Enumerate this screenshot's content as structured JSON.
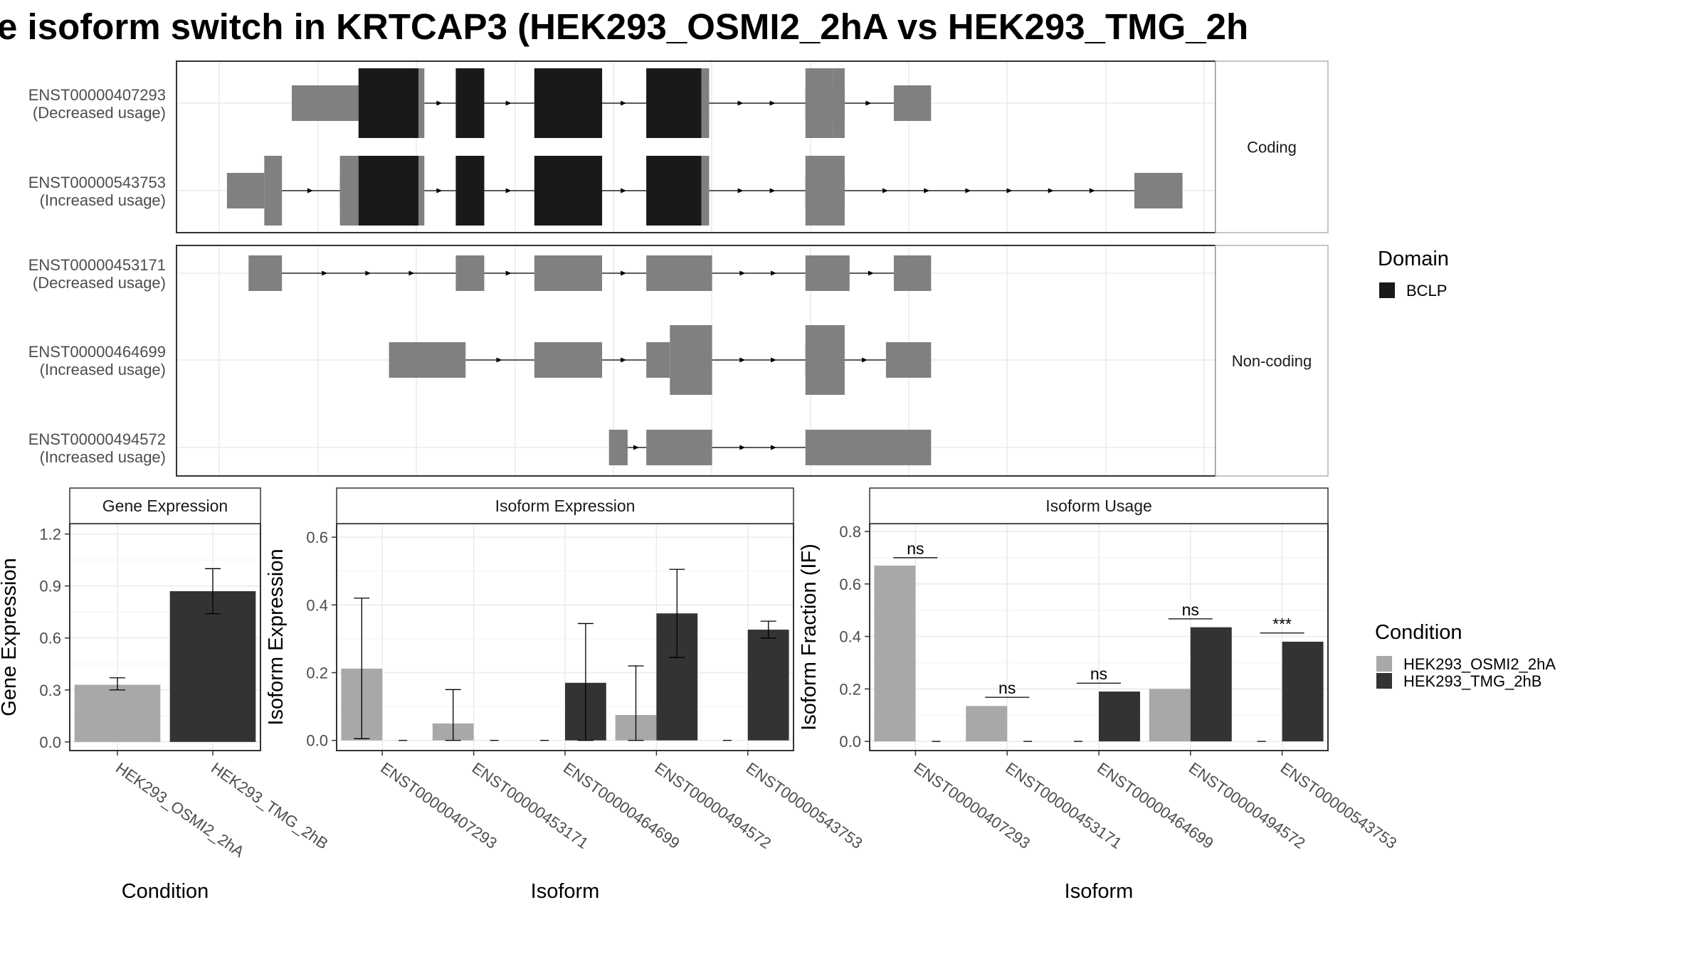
{
  "title": "e isoform switch in KRTCAP3 (HEK293_OSMI2_2hA vs HEK293_TMG_2h",
  "colors": {
    "domain": "#191919",
    "utr": "#808080",
    "cond1": "#a8a8a8",
    "cond2": "#333333",
    "grid": "#ebebeb"
  },
  "structure": {
    "xlim": [
      0,
      100
    ],
    "groups": [
      {
        "label": "Coding",
        "isoforms": [
          {
            "id": "ENST00000407293",
            "usage": "(Decreased usage)",
            "utr": [
              [
                7.1,
                14.4
              ],
              [
                23.8,
                26.7
              ],
              [
                31.8,
                38.7
              ],
              [
                43.2,
                49.6
              ],
              [
                59.4,
                63.4
              ],
              [
                68.4,
                72.2
              ]
            ],
            "cds": [
              [
                13.9,
                20.6
              ],
              [
                23.8,
                26.7
              ],
              [
                31.8,
                38.7
              ],
              [
                43.2,
                49.6
              ],
              [
                59.4,
                62.2
              ],
              [
                62.2,
                63.4
              ]
            ],
            "domain": [
              [
                13.9,
                20.0
              ],
              [
                23.8,
                26.7
              ],
              [
                31.8,
                38.7
              ],
              [
                43.2,
                48.8
              ]
            ],
            "introns": [
              [
                20.6,
                23.8
              ],
              [
                26.7,
                31.8
              ],
              [
                38.7,
                43.2
              ],
              [
                49.6,
                59.4
              ],
              [
                63.4,
                68.4
              ]
            ]
          },
          {
            "id": "ENST00000543753",
            "usage": "(Increased usage)",
            "utr": [
              [
                0.5,
                4.3
              ],
              [
                12.0,
                14.0
              ],
              [
                59.4,
                63.4
              ],
              [
                92.9,
                97.8
              ]
            ],
            "cds": [
              [
                4.3,
                6.1
              ],
              [
                12.0,
                20.6
              ],
              [
                23.8,
                26.7
              ],
              [
                31.8,
                38.7
              ],
              [
                43.2,
                49.6
              ],
              [
                59.4,
                63.4
              ]
            ],
            "domain": [
              [
                13.9,
                20.0
              ],
              [
                23.8,
                26.7
              ],
              [
                31.8,
                38.7
              ],
              [
                43.2,
                48.8
              ]
            ],
            "introns": [
              [
                6.1,
                12.0
              ],
              [
                20.6,
                23.8
              ],
              [
                26.7,
                31.8
              ],
              [
                38.7,
                43.2
              ],
              [
                49.6,
                59.4
              ],
              [
                63.4,
                92.9
              ]
            ]
          }
        ]
      },
      {
        "label": "Non-coding",
        "isoforms": [
          {
            "id": "ENST00000453171",
            "usage": "(Decreased usage)",
            "utr": [
              [
                2.7,
                6.1
              ],
              [
                23.8,
                26.7
              ],
              [
                31.8,
                38.7
              ],
              [
                43.2,
                49.9
              ],
              [
                59.4,
                63.9
              ],
              [
                68.4,
                72.2
              ]
            ],
            "cds": [],
            "domain": [],
            "introns": [
              [
                6.1,
                23.8
              ],
              [
                26.7,
                31.8
              ],
              [
                38.7,
                43.2
              ],
              [
                49.9,
                59.4
              ],
              [
                63.9,
                68.4
              ]
            ]
          },
          {
            "id": "ENST00000464699",
            "usage": "(Increased usage)",
            "utr": [
              [
                17.0,
                24.8
              ],
              [
                31.8,
                38.7
              ],
              [
                43.2,
                45.6
              ],
              [
                59.4,
                62.4
              ],
              [
                67.6,
                72.2
              ]
            ],
            "cds": [
              [
                45.6,
                49.9
              ],
              [
                59.4,
                63.4
              ]
            ],
            "domain": [],
            "introns": [
              [
                24.8,
                31.8
              ],
              [
                38.7,
                43.2
              ],
              [
                49.9,
                59.4
              ],
              [
                63.4,
                67.6
              ]
            ]
          },
          {
            "id": "ENST00000494572",
            "usage": "(Increased usage)",
            "utr": [
              [
                39.4,
                41.3
              ],
              [
                43.2,
                49.9
              ],
              [
                59.4,
                72.2
              ]
            ],
            "cds": [],
            "domain": [],
            "introns": [
              [
                41.3,
                43.2
              ],
              [
                49.9,
                59.4
              ]
            ]
          }
        ]
      }
    ]
  },
  "legend_domain": {
    "title": "Domain",
    "items": [
      {
        "label": "BCLP",
        "color": "#191919"
      }
    ]
  },
  "legend_condition": {
    "title": "Condition",
    "items": [
      {
        "label": "HEK293_OSMI2_2hA",
        "color": "#a8a8a8"
      },
      {
        "label": "HEK293_TMG_2hB",
        "color": "#333333"
      }
    ]
  },
  "chart_data": [
    {
      "type": "bar",
      "title": "Gene Expression",
      "xlabel": "Condition",
      "ylabel": "Gene Expression",
      "categories": [
        "HEK293_OSMI2_2hA",
        "HEK293_TMG_2hB"
      ],
      "values": [
        0.33,
        0.87
      ],
      "errors": [
        [
          0.3,
          0.37
        ],
        [
          0.74,
          1.0
        ]
      ],
      "ylim": [
        -0.05,
        1.26
      ],
      "yticks": [
        0.0,
        0.3,
        0.6,
        0.9,
        1.2
      ],
      "ytick_labels": [
        "0.0",
        "0.3",
        "0.6",
        "0.9",
        "1.2"
      ]
    },
    {
      "type": "bar",
      "title": "Isoform Expression",
      "xlabel": "Isoform",
      "ylabel": "Isoform Expression",
      "categories": [
        "ENST00000407293",
        "ENST00000453171",
        "ENST00000464699",
        "ENST00000494572",
        "ENST00000543753"
      ],
      "series": [
        {
          "name": "HEK293_OSMI2_2hA",
          "values": [
            0.212,
            0.05,
            0.0,
            0.075,
            0.0
          ],
          "errors": [
            [
              0.005,
              0.42
            ],
            [
              0.0,
              0.15
            ],
            null,
            [
              0.0,
              0.22
            ],
            null
          ]
        },
        {
          "name": "HEK293_TMG_2hB",
          "values": [
            0.0,
            0.0,
            0.17,
            0.375,
            0.327
          ],
          "errors": [
            null,
            null,
            [
              0.0,
              0.345
            ],
            [
              0.245,
              0.505
            ],
            [
              0.302,
              0.352
            ]
          ]
        }
      ],
      "ylim": [
        -0.03,
        0.64
      ],
      "yticks": [
        0.0,
        0.2,
        0.4,
        0.6
      ],
      "ytick_labels": [
        "0.0",
        "0.2",
        "0.4",
        "0.6"
      ]
    },
    {
      "type": "bar",
      "title": "Isoform Usage",
      "xlabel": "Isoform",
      "ylabel": "Isoform Fraction (IF)",
      "categories": [
        "ENST00000407293",
        "ENST00000453171",
        "ENST00000464699",
        "ENST00000494572",
        "ENST00000543753"
      ],
      "series": [
        {
          "name": "HEK293_OSMI2_2hA",
          "values": [
            0.67,
            0.135,
            0.0,
            0.2,
            0.0
          ]
        },
        {
          "name": "HEK293_TMG_2hB",
          "values": [
            0.0,
            0.0,
            0.19,
            0.435,
            0.38
          ]
        }
      ],
      "annotations": [
        {
          "category": 0,
          "label": "ns",
          "y": 0.7
        },
        {
          "category": 1,
          "label": "ns",
          "y": 0.168
        },
        {
          "category": 2,
          "label": "ns",
          "y": 0.222
        },
        {
          "category": 3,
          "label": "ns",
          "y": 0.467
        },
        {
          "category": 4,
          "label": "***",
          "y": 0.413
        }
      ],
      "ylim": [
        -0.035,
        0.83
      ],
      "yticks": [
        0.0,
        0.2,
        0.4,
        0.6,
        0.8
      ],
      "ytick_labels": [
        "0.0",
        "0.2",
        "0.4",
        "0.6",
        "0.8"
      ]
    }
  ]
}
